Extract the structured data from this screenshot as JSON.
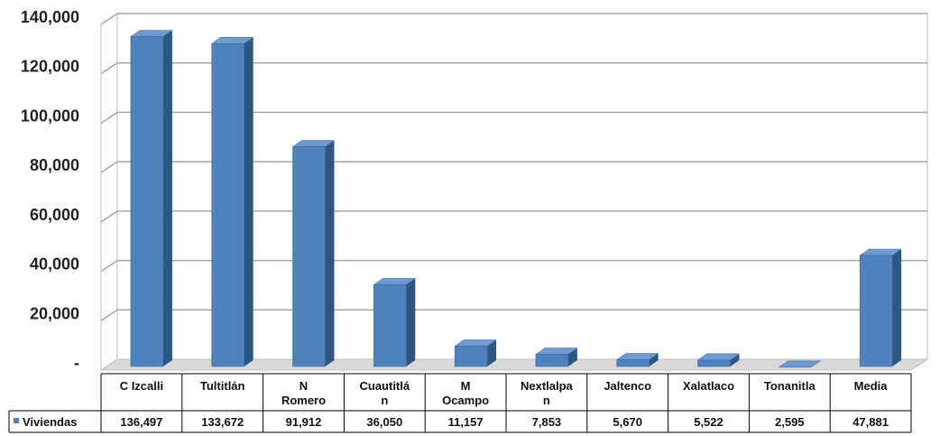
{
  "chart_data": {
    "type": "bar",
    "title": "",
    "xlabel": "",
    "ylabel": "",
    "categories": [
      [
        "C Izcalli"
      ],
      [
        "Tultitlán"
      ],
      [
        "N",
        "Romero"
      ],
      [
        "Cuautitlá",
        "n"
      ],
      [
        "M",
        "Ocampo"
      ],
      [
        "Nextlalpa",
        "n"
      ],
      [
        "Jaltenco"
      ],
      [
        "Xalatlaco"
      ],
      [
        "Tonanitla"
      ],
      [
        "Media"
      ]
    ],
    "series": [
      {
        "name": "Viviendas",
        "values": [
          136497,
          133672,
          91912,
          36050,
          11157,
          7853,
          5670,
          5522,
          2595,
          47881
        ],
        "value_labels": [
          "136,497",
          "133,672",
          "91,912",
          "36,050",
          "11,157",
          "7,853",
          "5,670",
          "5,522",
          "2,595",
          "47,881"
        ]
      }
    ],
    "ylim": [
      0,
      140000
    ],
    "yticks": [
      0,
      20000,
      40000,
      60000,
      80000,
      100000,
      120000,
      140000
    ],
    "ytick_labels": [
      "-",
      "20,000",
      "40,000",
      "60,000",
      "80,000",
      "100,000",
      "120,000",
      "140,000"
    ],
    "grid": true,
    "legend": "data-table-left",
    "colors": {
      "bar_front": "#4f81bd",
      "bar_top": "#6f9ad0",
      "bar_side": "#2f5683",
      "grid": "#a6a6a6",
      "wall": "#ffffff",
      "floor": "#d9d9d9"
    }
  }
}
